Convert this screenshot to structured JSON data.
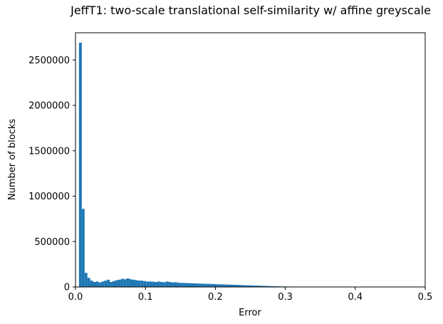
{
  "chart_data": {
    "type": "bar",
    "title": "JeffT1: two-scale translational self-similarity w/ affine greyscale",
    "xlabel": "Error",
    "ylabel": "Number of blocks",
    "xlim": [
      0,
      0.5
    ],
    "ylim": [
      0,
      2800000
    ],
    "grid": false,
    "bar_color": "#1f77b4",
    "x_ticks": [
      0,
      0.1,
      0.2,
      0.3,
      0.4,
      0.5
    ],
    "x_tick_labels": [
      "0.0",
      "0.1",
      "0.2",
      "0.3",
      "0.4",
      "0.5"
    ],
    "y_ticks": [
      0,
      500000,
      1000000,
      1500000,
      2000000,
      2500000
    ],
    "y_tick_labels": [
      "0",
      "500000",
      "1000000",
      "1500000",
      "2000000",
      "2500000"
    ],
    "bin_width": 0.004,
    "bin_start": 0.005,
    "values": [
      2690000,
      860000,
      155000,
      100000,
      70000,
      55000,
      60000,
      50000,
      60000,
      70000,
      80000,
      55000,
      65000,
      75000,
      80000,
      90000,
      85000,
      95000,
      85000,
      80000,
      75000,
      70000,
      70000,
      65000,
      60000,
      60000,
      58000,
      55000,
      60000,
      55000,
      52000,
      60000,
      55000,
      50000,
      52000,
      48000,
      45000,
      45000,
      43000,
      42000,
      40000,
      40000,
      38000,
      37000,
      36000,
      35000,
      34000,
      33000,
      32000,
      30000,
      29000,
      28000,
      27000,
      26000,
      25000,
      24000,
      23000,
      22000,
      20000,
      19000,
      18000,
      17000,
      16000,
      15000,
      14000,
      13000,
      12000,
      11000,
      10000,
      9000,
      8000,
      7000,
      6000,
      5500,
      5000,
      4500,
      4000,
      3500,
      3000,
      2500,
      2000,
      1500,
      1200,
      1000,
      900,
      800,
      700,
      1500,
      600,
      500,
      400,
      300,
      300,
      200,
      200,
      150,
      120,
      100,
      80,
      60,
      50,
      40,
      30,
      20,
      10,
      10,
      5,
      5,
      3,
      2,
      1,
      1,
      0,
      0,
      0,
      0,
      0,
      0,
      0
    ]
  }
}
